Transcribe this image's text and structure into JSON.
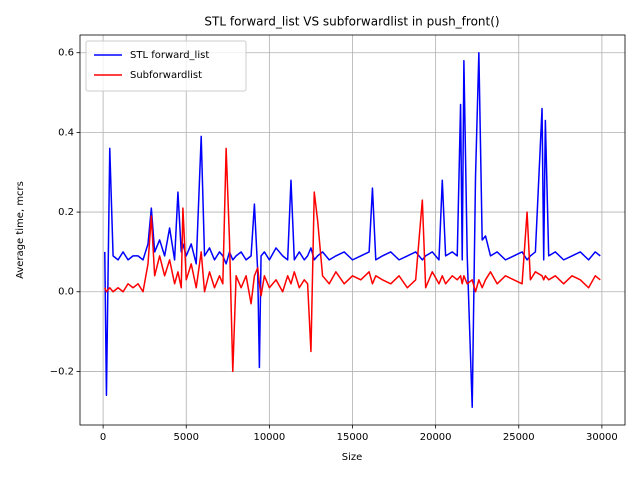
{
  "chart_data": {
    "type": "line",
    "title": "STL forward_list VS subforwardlist in push_front()",
    "x_label": "Size",
    "y_label": "Average time, mcrs",
    "x": [
      100,
      200,
      400,
      600,
      900,
      1200,
      1500,
      1800,
      2100,
      2400,
      2700,
      2900,
      3100,
      3400,
      3700,
      4000,
      4300,
      4500,
      4700,
      4800,
      5000,
      5300,
      5600,
      5900,
      6100,
      6400,
      6700,
      7000,
      7200,
      7400,
      7600,
      7800,
      8000,
      8300,
      8600,
      8900,
      9100,
      9300,
      9400,
      9500,
      9700,
      10000,
      10400,
      10800,
      11100,
      11300,
      11500,
      11800,
      12100,
      12300,
      12500,
      12700,
      12900,
      13200,
      13600,
      14000,
      14500,
      15000,
      15500,
      16000,
      16200,
      16400,
      16800,
      17300,
      17800,
      18300,
      18800,
      19200,
      19400,
      19800,
      20200,
      20400,
      20600,
      21000,
      21300,
      21500,
      21600,
      21700,
      21900,
      22200,
      22400,
      22600,
      22800,
      23000,
      23300,
      23700,
      24200,
      24700,
      25200,
      25500,
      25700,
      26000,
      26400,
      26500,
      26600,
      26800,
      27200,
      27700,
      28200,
      28700,
      29200,
      29600,
      29900
    ],
    "series": [
      {
        "name": "STL forward_list",
        "color": "#0000ff",
        "values": [
          0.1,
          -0.26,
          0.36,
          0.09,
          0.08,
          0.1,
          0.08,
          0.09,
          0.09,
          0.08,
          0.12,
          0.21,
          0.1,
          0.13,
          0.09,
          0.16,
          0.08,
          0.25,
          0.1,
          0.12,
          0.09,
          0.12,
          0.07,
          0.39,
          0.09,
          0.11,
          0.08,
          0.1,
          0.09,
          0.07,
          0.1,
          0.08,
          0.09,
          0.1,
          0.08,
          0.09,
          0.22,
          0.05,
          -0.19,
          0.09,
          0.1,
          0.08,
          0.11,
          0.09,
          0.08,
          0.28,
          0.08,
          0.1,
          0.08,
          0.09,
          0.11,
          0.08,
          0.09,
          0.1,
          0.08,
          0.09,
          0.1,
          0.08,
          0.09,
          0.1,
          0.26,
          0.08,
          0.09,
          0.1,
          0.08,
          0.09,
          0.1,
          0.08,
          0.09,
          0.1,
          0.08,
          0.28,
          0.09,
          0.1,
          0.09,
          0.47,
          0.08,
          0.58,
          0.09,
          -0.29,
          0.29,
          0.6,
          0.13,
          0.14,
          0.09,
          0.1,
          0.08,
          0.09,
          0.1,
          0.08,
          0.09,
          0.1,
          0.46,
          0.08,
          0.43,
          0.09,
          0.1,
          0.08,
          0.09,
          0.1,
          0.08,
          0.1,
          0.09
        ]
      },
      {
        "name": "Subforwardlist",
        "color": "#ff0000",
        "values": [
          0.01,
          0.0,
          0.01,
          0.0,
          0.01,
          0.0,
          0.02,
          0.01,
          0.02,
          0.0,
          0.07,
          0.19,
          0.04,
          0.09,
          0.04,
          0.08,
          0.02,
          0.05,
          0.01,
          0.21,
          0.03,
          0.07,
          0.01,
          0.1,
          0.0,
          0.05,
          0.01,
          0.04,
          0.02,
          0.36,
          0.13,
          -0.2,
          0.04,
          0.01,
          0.04,
          -0.03,
          0.04,
          0.06,
          0.02,
          -0.01,
          0.04,
          0.01,
          0.03,
          0.0,
          0.04,
          0.02,
          0.05,
          0.01,
          0.03,
          0.02,
          -0.15,
          0.25,
          0.18,
          0.04,
          0.02,
          0.05,
          0.02,
          0.04,
          0.03,
          0.05,
          0.02,
          0.04,
          0.03,
          0.02,
          0.04,
          0.01,
          0.03,
          0.23,
          0.01,
          0.05,
          0.02,
          0.04,
          0.02,
          0.04,
          0.03,
          0.04,
          0.02,
          0.04,
          0.02,
          0.03,
          0.0,
          0.03,
          0.01,
          0.03,
          0.05,
          0.02,
          0.04,
          0.03,
          0.02,
          0.2,
          0.03,
          0.05,
          0.04,
          0.03,
          0.04,
          0.03,
          0.04,
          0.02,
          0.04,
          0.03,
          0.01,
          0.04,
          0.03
        ]
      }
    ],
    "xlim": [
      -1390,
      31390
    ],
    "ylim": [
      -0.3345,
      0.6445
    ],
    "xticks": [
      0,
      5000,
      10000,
      15000,
      20000,
      25000,
      30000
    ],
    "yticks": [
      {
        "value": -0.2,
        "label": "−0.2"
      },
      {
        "value": 0,
        "label": "0.0"
      },
      0.2,
      0.4,
      0.6
    ],
    "grid": true,
    "legend": "upper left"
  }
}
